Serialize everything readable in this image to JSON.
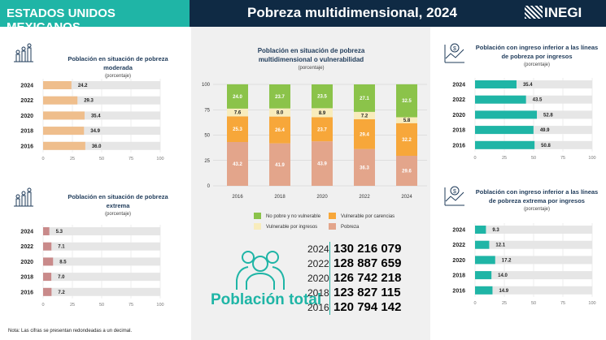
{
  "header": {
    "left": "ESTADOS UNIDOS MEXICANOS",
    "title": "Pobreza multidimensional, 2024",
    "logo": "INEGI"
  },
  "colors": {
    "teal": "#1fb5a6",
    "navy": "#0f2a44",
    "moderada": "#efbe8c",
    "extrema": "#c98a8a",
    "track": "#e6e6e6",
    "green": "#8bc34a",
    "orange": "#f7a73a",
    "cream": "#f8ecbc",
    "salmon": "#e3a58b"
  },
  "note": "Nota: Las cifras se presentan redondeadas a un decimal.",
  "poblacion": {
    "label": "Población total",
    "rows": [
      {
        "year": "2024",
        "value": "130 216 079"
      },
      {
        "year": "2022",
        "value": "128 887 659"
      },
      {
        "year": "2020",
        "value": "126 742 218"
      },
      {
        "year": "2018",
        "value": "123 827 115"
      },
      {
        "year": "2016",
        "value": "120 794 142"
      }
    ]
  },
  "chart_data": [
    {
      "id": "moderada",
      "type": "bar",
      "title": "Población en situación de pobreza moderada",
      "subtitle": "(porcentaje)",
      "icon": "family-icon",
      "categories": [
        "2024",
        "2022",
        "2020",
        "2018",
        "2016"
      ],
      "values": [
        24.2,
        29.3,
        35.4,
        34.9,
        36.0
      ],
      "labels": [
        "24.2",
        "29.3",
        "35.4",
        "34.9",
        "36.0"
      ],
      "xlim": [
        0,
        100
      ],
      "ticks": [
        "0",
        "25",
        "50",
        "75",
        "100"
      ]
    },
    {
      "id": "extrema",
      "type": "bar",
      "title": "Población en situación de pobreza extrema",
      "subtitle": "(porcentaje)",
      "icon": "family-icon",
      "categories": [
        "2024",
        "2022",
        "2020",
        "2018",
        "2016"
      ],
      "values": [
        5.3,
        7.1,
        8.5,
        7.0,
        7.2
      ],
      "labels": [
        "5.3",
        "7.1",
        "8.5",
        "7.0",
        "7.2"
      ],
      "xlim": [
        0,
        100
      ],
      "ticks": [
        "0",
        "25",
        "50",
        "75",
        "100"
      ]
    },
    {
      "id": "ingreso",
      "type": "bar",
      "title": "Población con ingreso inferior a las líneas de pobreza por ingresos",
      "subtitle": "(porcentaje)",
      "icon": "money-chart-icon",
      "categories": [
        "2024",
        "2022",
        "2020",
        "2018",
        "2016"
      ],
      "values": [
        35.4,
        43.5,
        52.8,
        49.9,
        50.8
      ],
      "labels": [
        "35.4",
        "43.5",
        "52.8",
        "49.9",
        "50.8"
      ],
      "xlim": [
        0,
        100
      ],
      "ticks": [
        "0",
        "25",
        "50",
        "75",
        "100"
      ]
    },
    {
      "id": "ingreso-extrema",
      "type": "bar",
      "title": "Población con ingreso inferior a las líneas de pobreza extrema por ingresos",
      "subtitle": "(porcentaje)",
      "icon": "money-chart-icon",
      "categories": [
        "2024",
        "2022",
        "2020",
        "2018",
        "2016"
      ],
      "values": [
        9.3,
        12.1,
        17.2,
        14.0,
        14.9
      ],
      "labels": [
        "9.3",
        "12.1",
        "17.2",
        "14.0",
        "14.9"
      ],
      "xlim": [
        0,
        100
      ],
      "ticks": [
        "0",
        "25",
        "50",
        "75",
        "100"
      ]
    },
    {
      "id": "multi",
      "type": "bar",
      "stacked": true,
      "title": "Población en situación de pobreza multidimensional o vulnerabilidad",
      "subtitle": "(porcentaje)",
      "categories": [
        "2016",
        "2018",
        "2020",
        "2022",
        "2024"
      ],
      "ylim": [
        0,
        100
      ],
      "yticks": [
        "0",
        "25",
        "50",
        "75",
        "100"
      ],
      "legend": "bottom",
      "series": [
        {
          "name": "Pobreza",
          "values": [
            43.2,
            41.9,
            43.9,
            36.3,
            29.6
          ]
        },
        {
          "name": "Vulnerable por carencias",
          "values": [
            25.3,
            26.4,
            23.7,
            29.4,
            32.2
          ]
        },
        {
          "name": "Vulnerable por ingresos",
          "values": [
            7.6,
            8.0,
            8.9,
            7.2,
            5.8
          ]
        },
        {
          "name": "No pobre y no vulnerable",
          "values": [
            24.0,
            23.7,
            23.5,
            27.1,
            32.5
          ]
        }
      ]
    }
  ]
}
